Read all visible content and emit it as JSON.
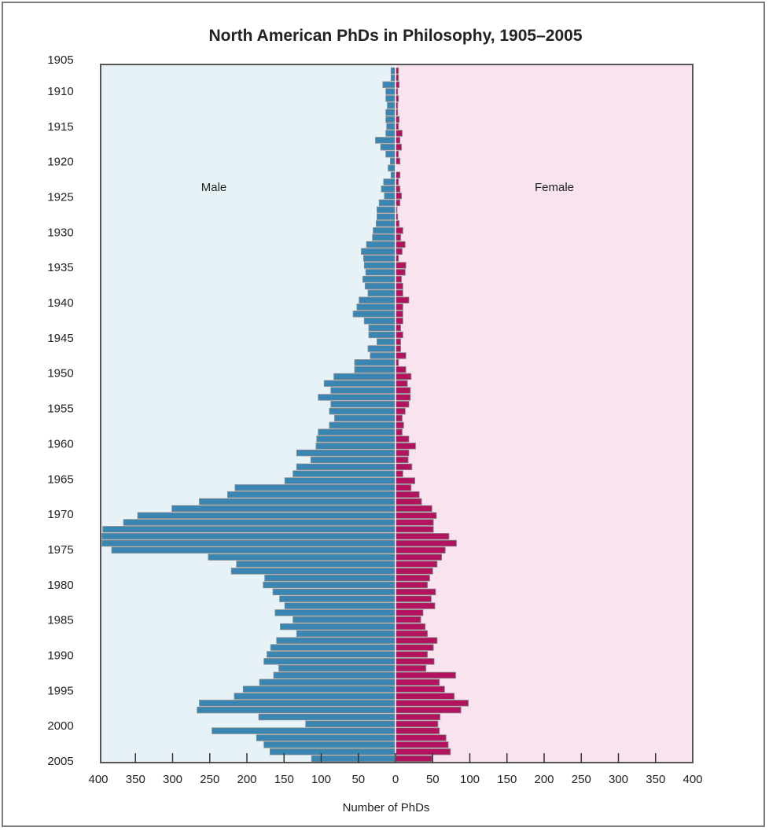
{
  "chart_data": {
    "type": "bar",
    "orientation": "horizontal-population-pyramid",
    "title": "North American PhDs in Philosophy, 1905–2005",
    "xlabel": "Number of PhDs",
    "ylabel": "",
    "xlim": [
      -400,
      400
    ],
    "x_ticks": [
      400,
      350,
      300,
      250,
      200,
      150,
      100,
      50,
      0,
      50,
      100,
      150,
      200,
      250,
      300,
      350,
      400
    ],
    "y_ticks": [
      1905,
      1910,
      1915,
      1920,
      1925,
      1930,
      1935,
      1940,
      1945,
      1950,
      1955,
      1960,
      1965,
      1970,
      1975,
      1980,
      1985,
      1990,
      1995,
      2000,
      2005
    ],
    "year_start": 1906,
    "year_end": 2005,
    "series": [
      {
        "name": "Male",
        "color": "#3a86b2",
        "values": [
          6,
          6,
          17,
          13,
          13,
          11,
          13,
          13,
          12,
          13,
          27,
          20,
          13,
          7,
          10,
          6,
          16,
          19,
          15,
          22,
          25,
          25,
          26,
          30,
          31,
          39,
          46,
          43,
          42,
          40,
          44,
          41,
          37,
          49,
          52,
          57,
          42,
          36,
          36,
          25,
          37,
          34,
          55,
          55,
          83,
          96,
          87,
          104,
          87,
          89,
          82,
          89,
          104,
          106,
          107,
          133,
          114,
          133,
          138,
          149,
          216,
          226,
          264,
          301,
          347,
          366,
          394,
          395,
          395,
          382,
          252,
          214,
          221,
          176,
          178,
          165,
          156,
          149,
          162,
          138,
          155,
          133,
          160,
          168,
          173,
          177,
          157,
          164,
          183,
          205,
          217,
          264,
          267,
          184,
          121,
          247,
          187,
          177,
          169,
          113
        ]
      },
      {
        "name": "Female",
        "color": "#b3125e",
        "values": [
          4,
          4,
          5,
          3,
          4,
          3,
          3,
          5,
          4,
          9,
          6,
          8,
          4,
          6,
          0,
          6,
          4,
          6,
          8,
          6,
          2,
          3,
          5,
          10,
          7,
          13,
          9,
          4,
          14,
          13,
          8,
          10,
          10,
          18,
          10,
          10,
          10,
          7,
          10,
          7,
          7,
          14,
          4,
          14,
          21,
          16,
          20,
          20,
          18,
          13,
          9,
          11,
          9,
          18,
          27,
          18,
          17,
          22,
          10,
          26,
          21,
          32,
          35,
          49,
          55,
          51,
          51,
          72,
          82,
          67,
          62,
          56,
          50,
          46,
          43,
          54,
          48,
          53,
          37,
          34,
          40,
          43,
          56,
          51,
          43,
          52,
          41,
          81,
          59,
          66,
          79,
          98,
          88,
          60,
          57,
          59,
          68,
          71,
          74,
          49
        ]
      }
    ],
    "panel_labels": {
      "left": "Male",
      "right": "Female"
    },
    "background_colors": {
      "left": "#e7f2f7",
      "right": "#f8e3ee"
    },
    "grid": false
  }
}
